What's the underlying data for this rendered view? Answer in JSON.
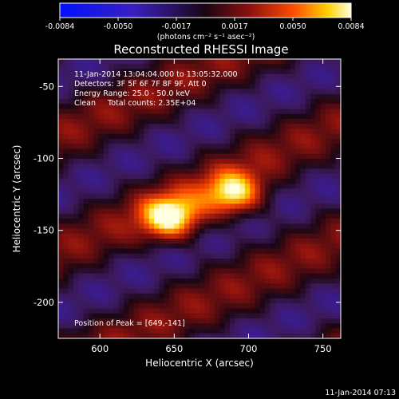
{
  "colorbar": {
    "ticks": [
      "-0.0084",
      "-0.0050",
      "-0.0017",
      "0.0017",
      "0.0050",
      "0.0084"
    ],
    "unit": "(photons cm⁻² s⁻¹ asec⁻²)"
  },
  "annotation": {
    "time_range": "11-Jan-2014 13:04:04.000 to 13:05:32.000",
    "detectors": "Detectors: 3F 5F 6F 7F 8F 9F, Att 0",
    "energy": "Energy Range: 25.0 - 50.0 keV",
    "clean": "Clean     Total counts: 2.35E+04",
    "peak": "Position of Peak = [649,-141]"
  },
  "footer_timestamp": "11-Jan-2014 07:13",
  "colors": {
    "background": "#000000",
    "text": "#ffffff"
  },
  "chart_data": {
    "type": "heatmap",
    "title": "Reconstructed RHESSI Image",
    "xlabel": "Heliocentric X (arcsec)",
    "ylabel": "Heliocentric Y (arcsec)",
    "xlim": [
      572,
      762
    ],
    "ylim": [
      -225,
      -31
    ],
    "xticks": [
      600,
      650,
      700,
      750
    ],
    "yticks": [
      -50,
      -100,
      -150,
      -200
    ],
    "zlim": [
      -0.0084,
      0.0084
    ],
    "peak": [
      649,
      -141
    ],
    "sources": [
      {
        "x": 648,
        "y": -141,
        "value": 0.0084
      },
      {
        "x": 690,
        "y": -125,
        "value": 0.0075
      }
    ]
  }
}
